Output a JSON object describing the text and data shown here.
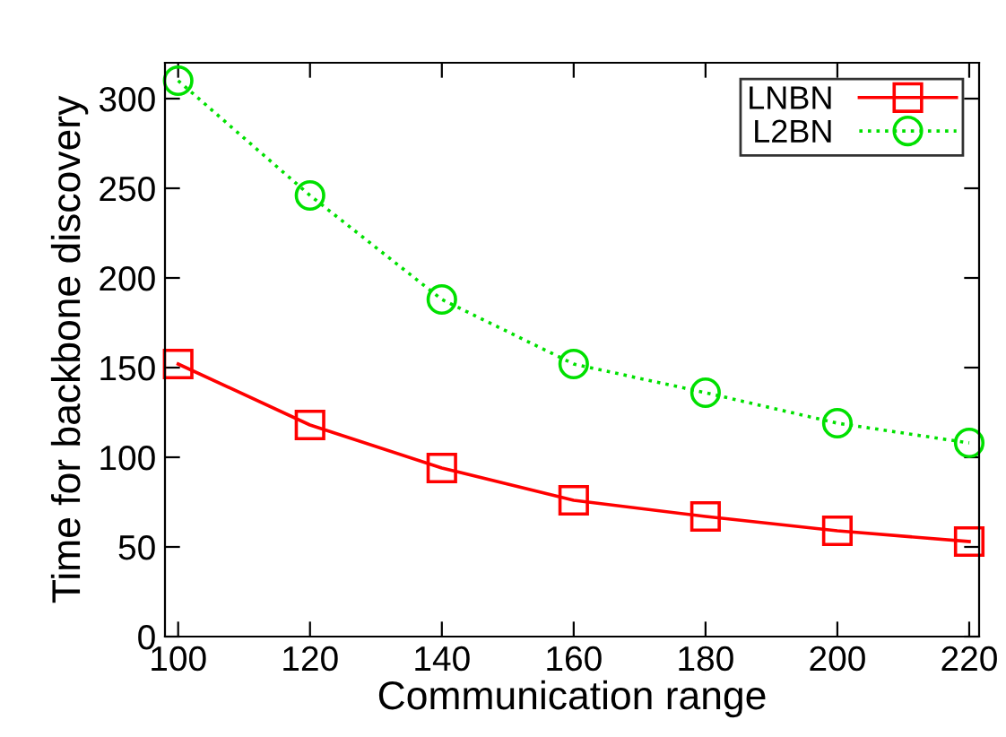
{
  "chart_data": {
    "type": "line",
    "xlabel": "Communication range",
    "ylabel": "Time for backbone discovery",
    "x": [
      100,
      120,
      140,
      160,
      180,
      200,
      220
    ],
    "series": [
      {
        "name": "LNBN",
        "color": "#ff0000",
        "values": [
          152,
          118,
          94,
          76,
          67,
          59,
          53
        ],
        "marker": "square",
        "line_style": "solid"
      },
      {
        "name": "L2BN",
        "color": "#00e000",
        "values": [
          310,
          246,
          188,
          152,
          136,
          119,
          108
        ],
        "marker": "circle",
        "line_style": "dotted"
      }
    ],
    "xlim": [
      98,
      221.5
    ],
    "ylim": [
      0,
      320
    ],
    "xticks": [
      100,
      120,
      140,
      160,
      180,
      200,
      220
    ],
    "yticks": [
      0,
      50,
      100,
      150,
      200,
      250,
      300
    ],
    "grid": false,
    "legend": "top right"
  }
}
